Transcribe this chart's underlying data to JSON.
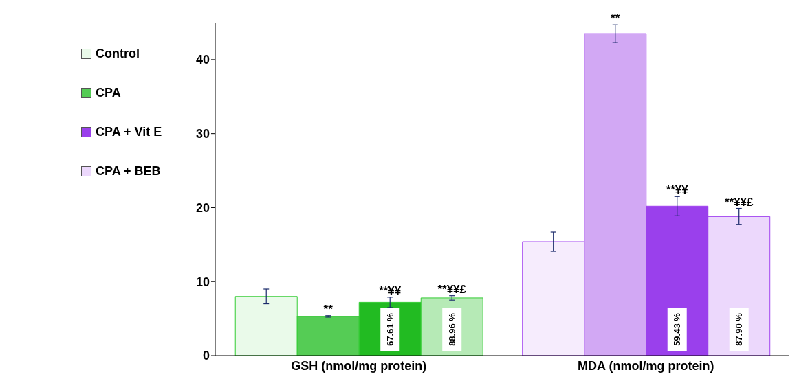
{
  "chart_data": {
    "type": "bar",
    "categories": [
      "GSH (nmol/mg protein)",
      "MDA (nmol/mg protein)"
    ],
    "series": [
      {
        "name": "Control",
        "color": "#eafaea",
        "colors": [
          "#eafaea",
          "#f6ecfd"
        ],
        "values": [
          8.0,
          15.4
        ],
        "errors": [
          1.0,
          1.3
        ]
      },
      {
        "name": "CPA",
        "color": "#55cc55",
        "colors": [
          "#55cc55",
          "#d2a8f4"
        ],
        "values": [
          5.3,
          43.5
        ],
        "errors": [
          0.1,
          1.2
        ]
      },
      {
        "name": "CPA + Vit E",
        "color": "#9a40ec",
        "colors": [
          "#22bb22",
          "#9a40ec"
        ],
        "values": [
          7.2,
          20.2
        ],
        "errors": [
          0.7,
          1.3
        ]
      },
      {
        "name": "CPA + BEB",
        "color": "#ecd8fc",
        "colors": [
          "#b6eab6",
          "#ecd8fc"
        ],
        "values": [
          7.8,
          18.8
        ],
        "errors": [
          0.3,
          1.1
        ]
      }
    ],
    "ylim": [
      0,
      45
    ],
    "yticks": [
      0,
      10,
      20,
      30,
      40
    ],
    "legend": "top left",
    "annotations": [
      {
        "text": "**",
        "x": "GSH (nmol/mg protein)",
        "y": 5.3
      },
      {
        "text": "**¥¥",
        "x": "GSH (nmol/mg protein)",
        "y": 7.2
      },
      {
        "text": "**",
        "x": "MDA (nmol/mg protein)",
        "y": 43.5
      },
      {
        "text": "**¥¥",
        "x": "MDA (nmol/mg protein)",
        "y": 20.2
      },
      "**¥¥£",
      "**¥¥£",
      "67.61 %",
      "88.96 %",
      "59.43 %",
      "87.90 %"
    ]
  }
}
